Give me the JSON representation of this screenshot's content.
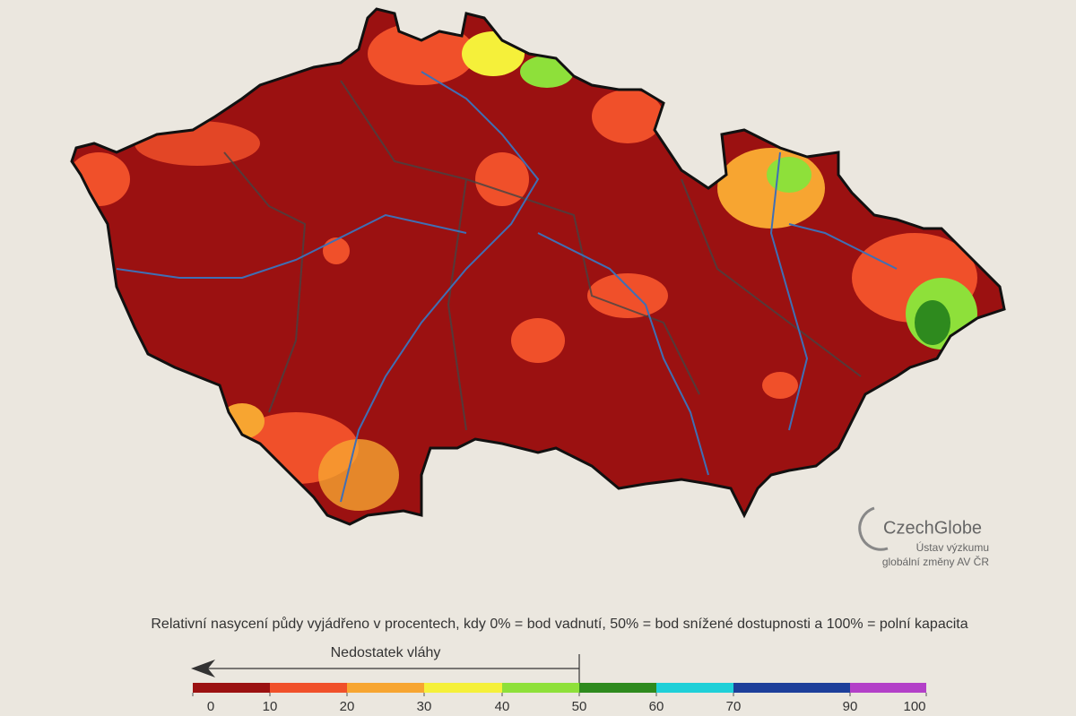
{
  "logo": {
    "name": "CzechGlobe",
    "line1": "Ústav výzkumu",
    "line2": "globální změny AV ČR"
  },
  "legend": {
    "caption": "Relativní nasycení půdy vyjádřeno v procentech, kdy 0% = bod vadnutí, 50% = bod snížené dostupnosti a 100% = polní kapacita",
    "arrow_label": "Nedostatek vláhy",
    "ticks": [
      0,
      10,
      20,
      30,
      40,
      50,
      60,
      70,
      90,
      100
    ],
    "colors": [
      "#9b1111",
      "#f0502a",
      "#f7a531",
      "#f5f03a",
      "#8ee03a",
      "#2e8a1e",
      "#1fd0d8",
      "#1d3f9a",
      "#b340c8"
    ]
  }
}
